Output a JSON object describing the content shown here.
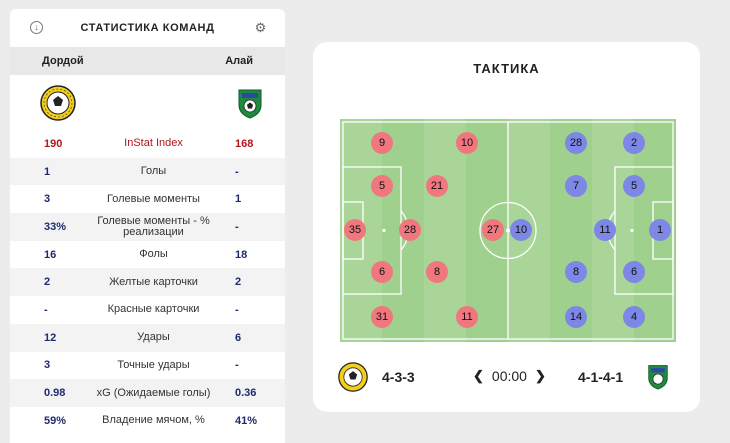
{
  "stats_panel": {
    "title": "СТАТИСТИКА КОМАНД",
    "home_team": "Дордой",
    "away_team": "Алай",
    "rows": [
      {
        "home": "190",
        "label": "InStat Index",
        "away": "168"
      },
      {
        "home": "1",
        "label": "Голы",
        "away": "-"
      },
      {
        "home": "3",
        "label": "Голевые моменты",
        "away": "1"
      },
      {
        "home": "33%",
        "label": "Голевые моменты - % реализации",
        "away": "-"
      },
      {
        "home": "16",
        "label": "Фолы",
        "away": "18"
      },
      {
        "home": "2",
        "label": "Желтые карточки",
        "away": "2"
      },
      {
        "home": "-",
        "label": "Красные карточки",
        "away": "-"
      },
      {
        "home": "12",
        "label": "Удары",
        "away": "6"
      },
      {
        "home": "3",
        "label": "Точные удары",
        "away": "-"
      },
      {
        "home": "0.98",
        "label": "xG (Ожидаемые голы)",
        "away": "0.36"
      },
      {
        "home": "59%",
        "label": "Владение мячом, %",
        "away": "41%"
      }
    ]
  },
  "tactics": {
    "title": "ТАКТИКА",
    "home_formation": "4-3-3",
    "away_formation": "4-1-4-1",
    "time": "00:00",
    "home_players": [
      "9",
      "10",
      "5",
      "21",
      "35",
      "28",
      "27",
      "6",
      "8",
      "31",
      "11"
    ],
    "away_players": [
      "28",
      "2",
      "7",
      "5",
      "10",
      "11",
      "1",
      "8",
      "6",
      "14",
      "4"
    ]
  },
  "colors": {
    "pitch": "#9fd08d",
    "home_player": "#f1777f",
    "away_player": "#7d87e6",
    "instat": "#b0161b",
    "value": "#1e2a6e"
  },
  "icons": [
    "info-icon",
    "gear-icon",
    "chevron-left-icon",
    "chevron-right-icon"
  ]
}
